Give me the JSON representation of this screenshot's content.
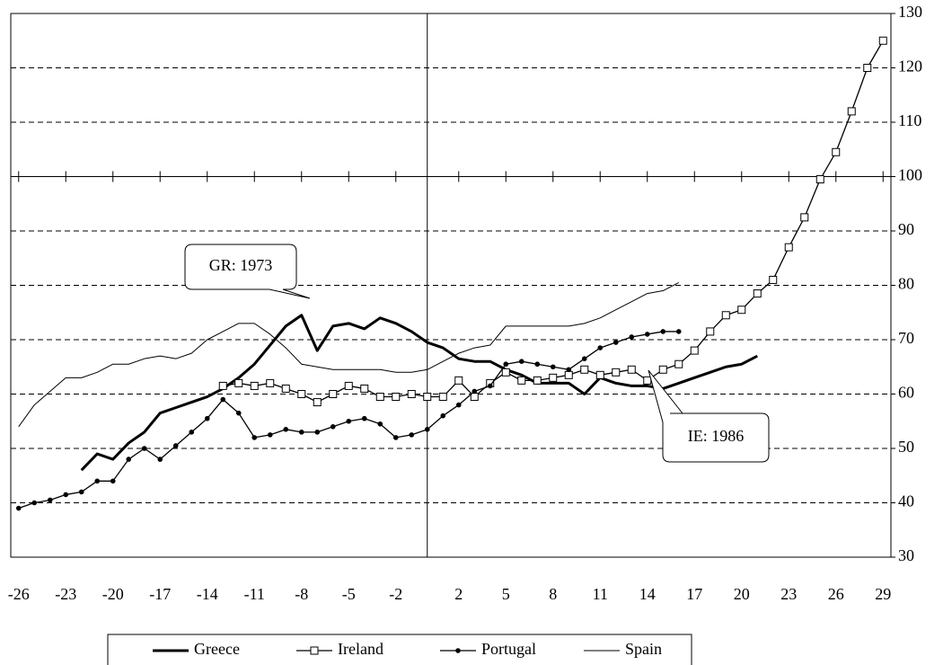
{
  "chart_data": {
    "type": "line",
    "x": [
      -26,
      -25,
      -24,
      -23,
      -22,
      -21,
      -20,
      -19,
      -18,
      -17,
      -16,
      -15,
      -14,
      -13,
      -12,
      -11,
      -10,
      -9,
      -8,
      -7,
      -6,
      -5,
      -4,
      -3,
      -2,
      -1,
      0,
      1,
      2,
      3,
      4,
      5,
      6,
      7,
      8,
      9,
      10,
      11,
      12,
      13,
      14,
      15,
      16,
      17,
      18,
      19,
      20,
      21,
      22,
      23,
      24,
      25,
      26,
      27,
      28,
      29
    ],
    "series": [
      {
        "name": "Greece",
        "color": "#000000",
        "width": 3,
        "marker": "none",
        "values": [
          null,
          null,
          null,
          null,
          46,
          49,
          48,
          51,
          53,
          56.5,
          57.5,
          58.5,
          59.5,
          61,
          63,
          65.5,
          69,
          72.5,
          74.5,
          68,
          72.5,
          73,
          72,
          74,
          73,
          71.5,
          69.5,
          68.5,
          66.5,
          66,
          66,
          64.5,
          63.5,
          62,
          62,
          62,
          60,
          63,
          62,
          61.5,
          61.5,
          61,
          62,
          63,
          64,
          65,
          65.5,
          67,
          null,
          null,
          null,
          null,
          null,
          null,
          null,
          null
        ]
      },
      {
        "name": "Ireland",
        "color": "#000000",
        "width": 1.3,
        "marker": "square",
        "values": [
          null,
          null,
          null,
          null,
          null,
          null,
          null,
          null,
          null,
          null,
          null,
          null,
          null,
          61.5,
          62,
          61.5,
          62,
          61,
          60,
          58.5,
          60,
          61.5,
          61,
          59.5,
          59.5,
          60,
          59.5,
          59.5,
          62.5,
          59.5,
          62,
          64,
          62.5,
          62.5,
          63,
          63.5,
          64.5,
          63.5,
          64,
          64.5,
          62.5,
          64.5,
          65.5,
          68,
          71.5,
          74.5,
          75.5,
          78.5,
          81,
          87,
          92.5,
          99.5,
          104.5,
          112,
          120,
          125
        ]
      },
      {
        "name": "Portugal",
        "color": "#000000",
        "width": 1.3,
        "marker": "dot",
        "values": [
          39,
          40,
          40.5,
          41.5,
          42,
          44,
          44,
          48,
          50,
          48,
          50.5,
          53,
          55.5,
          59,
          56.5,
          52,
          52.5,
          53.5,
          53,
          53,
          54,
          55,
          55.5,
          54.5,
          52,
          52.5,
          53.5,
          56,
          58,
          60.5,
          61.5,
          65.5,
          66,
          65.5,
          65,
          64.5,
          66.5,
          68.5,
          69.5,
          70.5,
          71,
          71.5,
          71.5,
          null,
          null,
          null,
          null,
          null,
          null,
          null,
          null,
          null,
          null,
          null,
          null,
          null
        ]
      },
      {
        "name": "Spain",
        "color": "#000000",
        "width": 1,
        "marker": "none",
        "values": [
          54,
          58,
          60.5,
          63,
          63,
          64,
          65.5,
          65.5,
          66.5,
          67,
          66.5,
          67.5,
          70,
          71.5,
          73,
          73,
          71,
          68.5,
          65.5,
          65,
          64.5,
          64.5,
          64.5,
          64.5,
          64,
          64,
          64.5,
          66,
          67.5,
          68.5,
          69,
          72.5,
          72.5,
          72.5,
          72.5,
          72.5,
          73,
          74,
          75.5,
          77,
          78.5,
          79,
          80.5,
          null,
          null,
          null,
          null,
          null,
          null,
          null,
          null,
          null,
          null,
          null,
          null,
          null
        ]
      }
    ],
    "xlim": [
      -26.5,
      29.5
    ],
    "xticks": [
      -26,
      -23,
      -20,
      -17,
      -14,
      -11,
      -8,
      -5,
      -2,
      2,
      5,
      8,
      11,
      14,
      17,
      20,
      23,
      26,
      29
    ],
    "ylim": [
      30,
      130
    ],
    "yticks": [
      30,
      40,
      50,
      60,
      70,
      80,
      90,
      100,
      110,
      120,
      130
    ],
    "x_axis_at": 100,
    "vline": 0,
    "grid": true,
    "annotations": [
      "GR: 1973",
      "IE: 1986"
    ]
  }
}
